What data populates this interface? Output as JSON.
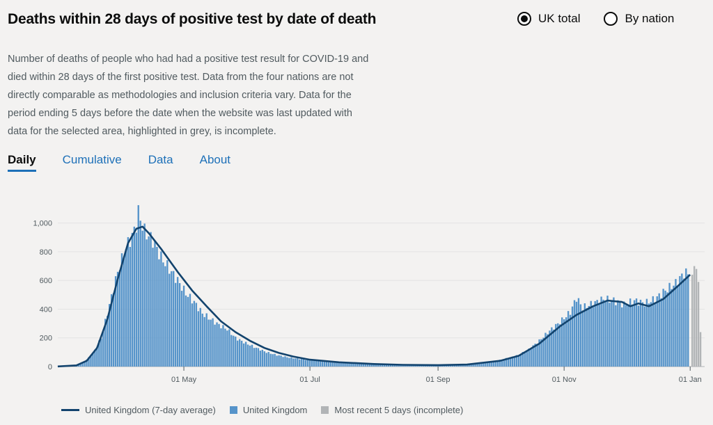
{
  "title": "Deaths within 28 days of positive test by date of death",
  "radios": [
    {
      "label": "UK total",
      "checked": true
    },
    {
      "label": "By nation",
      "checked": false
    }
  ],
  "description": "Number of deaths of people who had had a positive test result for COVID-19 and died within 28 days of the first positive test. Data from the four nations are not directly comparable as methodologies and inclusion criteria vary. Data for the period ending 5 days before the date when the website was last updated with data for the selected area, highlighted in grey, is incomplete.",
  "tabs": [
    "Daily",
    "Cumulative",
    "Data",
    "About"
  ],
  "active_tab": "Daily",
  "colors": {
    "bar": "#5694ca",
    "line": "#12436d",
    "incomplete": "#b1b4b6"
  },
  "legend": [
    {
      "label": "United Kingdom (7-day average)",
      "kind": "line",
      "color": "#12436d"
    },
    {
      "label": "United Kingdom",
      "kind": "box",
      "color": "#5694ca"
    },
    {
      "label": "Most recent 5 days (incomplete)",
      "kind": "box",
      "color": "#b1b4b6"
    }
  ],
  "chart_data": {
    "type": "bar",
    "x_range": [
      "2020-03-01",
      "2021-01-08"
    ],
    "y_range": [
      0,
      1100
    ],
    "y_ticks": [
      0,
      200,
      400,
      600,
      800,
      1000
    ],
    "y_tick_labels": [
      "0",
      "200",
      "400",
      "600",
      "800",
      "1,000"
    ],
    "x_tick_dates": [
      "2020-05-01",
      "2020-07-01",
      "2020-09-01",
      "2020-11-01",
      "2021-01-01"
    ],
    "x_tick_labels": [
      "01 May",
      "01 Jul",
      "01 Sep",
      "01 Nov",
      "01 Jan"
    ],
    "grid": true,
    "legend_position": "bottom",
    "series": [
      {
        "name": "United Kingdom",
        "kind": "bar",
        "points": [
          [
            "2020-03-01",
            1
          ],
          [
            "2020-03-05",
            2
          ],
          [
            "2020-03-10",
            10
          ],
          [
            "2020-03-14",
            35
          ],
          [
            "2020-03-18",
            90
          ],
          [
            "2020-03-22",
            200
          ],
          [
            "2020-03-26",
            430
          ],
          [
            "2020-03-30",
            660
          ],
          [
            "2020-04-03",
            830
          ],
          [
            "2020-04-06",
            910
          ],
          [
            "2020-04-08",
            990
          ],
          [
            "2020-04-09",
            1070
          ],
          [
            "2020-04-12",
            940
          ],
          [
            "2020-04-16",
            880
          ],
          [
            "2020-04-20",
            760
          ],
          [
            "2020-04-24",
            680
          ],
          [
            "2020-04-28",
            600
          ],
          [
            "2020-05-02",
            510
          ],
          [
            "2020-05-06",
            450
          ],
          [
            "2020-05-10",
            370
          ],
          [
            "2020-05-14",
            330
          ],
          [
            "2020-05-18",
            290
          ],
          [
            "2020-05-22",
            260
          ],
          [
            "2020-05-26",
            200
          ],
          [
            "2020-05-30",
            170
          ],
          [
            "2020-06-05",
            130
          ],
          [
            "2020-06-10",
            100
          ],
          [
            "2020-06-15",
            80
          ],
          [
            "2020-06-20",
            65
          ],
          [
            "2020-06-25",
            55
          ],
          [
            "2020-07-01",
            45
          ],
          [
            "2020-07-10",
            32
          ],
          [
            "2020-07-20",
            22
          ],
          [
            "2020-08-01",
            15
          ],
          [
            "2020-08-15",
            10
          ],
          [
            "2020-09-01",
            9
          ],
          [
            "2020-09-10",
            12
          ],
          [
            "2020-09-20",
            22
          ],
          [
            "2020-10-01",
            45
          ],
          [
            "2020-10-10",
            80
          ],
          [
            "2020-10-15",
            120
          ],
          [
            "2020-10-20",
            180
          ],
          [
            "2020-10-25",
            250
          ],
          [
            "2020-10-30",
            310
          ],
          [
            "2020-11-04",
            380
          ],
          [
            "2020-11-07",
            480
          ],
          [
            "2020-11-10",
            410
          ],
          [
            "2020-11-15",
            440
          ],
          [
            "2020-11-20",
            470
          ],
          [
            "2020-11-25",
            460
          ],
          [
            "2020-11-30",
            430
          ],
          [
            "2020-12-05",
            460
          ],
          [
            "2020-12-10",
            440
          ],
          [
            "2020-12-15",
            470
          ],
          [
            "2020-12-20",
            530
          ],
          [
            "2020-12-25",
            580
          ],
          [
            "2020-12-29",
            650
          ],
          [
            "2020-12-31",
            650
          ]
        ]
      },
      {
        "name": "United Kingdom (7-day average)",
        "kind": "line",
        "points": [
          [
            "2020-03-01",
            1
          ],
          [
            "2020-03-10",
            8
          ],
          [
            "2020-03-15",
            40
          ],
          [
            "2020-03-20",
            130
          ],
          [
            "2020-03-25",
            330
          ],
          [
            "2020-03-30",
            610
          ],
          [
            "2020-04-04",
            860
          ],
          [
            "2020-04-08",
            960
          ],
          [
            "2020-04-11",
            975
          ],
          [
            "2020-04-14",
            930
          ],
          [
            "2020-04-20",
            820
          ],
          [
            "2020-04-28",
            660
          ],
          [
            "2020-05-05",
            530
          ],
          [
            "2020-05-12",
            420
          ],
          [
            "2020-05-19",
            315
          ],
          [
            "2020-05-26",
            240
          ],
          [
            "2020-06-02",
            180
          ],
          [
            "2020-06-09",
            130
          ],
          [
            "2020-06-16",
            95
          ],
          [
            "2020-06-23",
            70
          ],
          [
            "2020-07-01",
            48
          ],
          [
            "2020-07-15",
            30
          ],
          [
            "2020-08-01",
            18
          ],
          [
            "2020-08-15",
            12
          ],
          [
            "2020-09-01",
            10
          ],
          [
            "2020-09-15",
            14
          ],
          [
            "2020-10-01",
            40
          ],
          [
            "2020-10-10",
            75
          ],
          [
            "2020-10-20",
            160
          ],
          [
            "2020-10-30",
            280
          ],
          [
            "2020-11-07",
            360
          ],
          [
            "2020-11-15",
            420
          ],
          [
            "2020-11-22",
            460
          ],
          [
            "2020-11-29",
            450
          ],
          [
            "2020-12-03",
            420
          ],
          [
            "2020-12-07",
            440
          ],
          [
            "2020-12-12",
            420
          ],
          [
            "2020-12-19",
            470
          ],
          [
            "2020-12-26",
            560
          ],
          [
            "2021-01-01",
            640
          ]
        ]
      },
      {
        "name": "Most recent 5 days (incomplete)",
        "kind": "bar",
        "points": [
          [
            "2021-01-02",
            640
          ],
          [
            "2021-01-03",
            700
          ],
          [
            "2021-01-04",
            680
          ],
          [
            "2021-01-05",
            590
          ],
          [
            "2021-01-06",
            240
          ]
        ]
      }
    ]
  }
}
